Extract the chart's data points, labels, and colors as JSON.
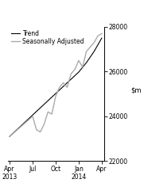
{
  "title": "",
  "ylim": [
    22000,
    28000
  ],
  "yticks": [
    22000,
    24000,
    26000,
    28000
  ],
  "xtick_labels": [
    "Apr\n2013",
    "Jul",
    "Oct",
    "Jan\n2014",
    "Apr"
  ],
  "legend_entries": [
    "Trend",
    "Seasonally Adjusted"
  ],
  "trend_color": "#000000",
  "sa_color": "#aaaaaa",
  "background_color": "#ffffff",
  "trend_x": [
    0,
    1,
    2,
    3,
    4,
    5,
    6,
    7,
    8,
    9,
    10,
    11,
    12
  ],
  "trend_y": [
    23100,
    23420,
    23740,
    24060,
    24380,
    24700,
    25020,
    25340,
    25660,
    25980,
    26400,
    26900,
    27500
  ],
  "sa_x": [
    0,
    1,
    2,
    3,
    3.5,
    4,
    4.5,
    5,
    5.5,
    6,
    6.5,
    7,
    7.5,
    8,
    8.5,
    9,
    9.5,
    10,
    10.5,
    11,
    11.5,
    12
  ],
  "sa_y": [
    23100,
    23400,
    23700,
    24000,
    23400,
    23300,
    23650,
    24200,
    24100,
    24900,
    25300,
    25500,
    25300,
    25900,
    26100,
    26500,
    26200,
    26900,
    27100,
    27300,
    27600,
    27700
  ]
}
